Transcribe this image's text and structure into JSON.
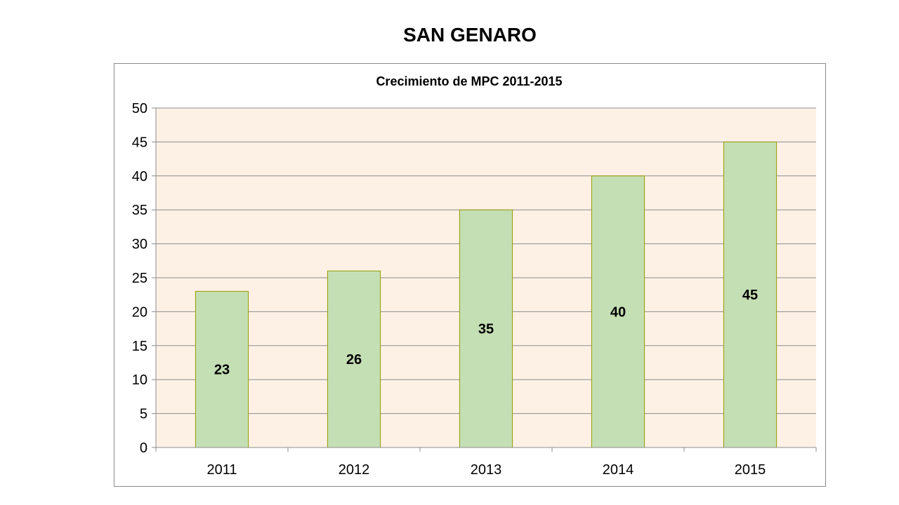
{
  "slide": {
    "title": "SAN GENARO"
  },
  "chart_data": {
    "type": "bar",
    "title": "Crecimiento de MPC 2011-2015",
    "xlabel": "",
    "ylabel": "",
    "categories": [
      "2011",
      "2012",
      "2013",
      "2014",
      "2015"
    ],
    "values": [
      23,
      26,
      35,
      40,
      45
    ],
    "data_labels": [
      "23",
      "26",
      "35",
      "40",
      "45"
    ],
    "ylim": [
      0,
      50
    ],
    "yticks": [
      0,
      5,
      10,
      15,
      20,
      25,
      30,
      35,
      40,
      45,
      50
    ],
    "grid": true,
    "legend": "none",
    "colors": {
      "bar_fill": "#c4dfb3",
      "bar_stroke": "#9a9a00",
      "plot_background": "#fdf1e6",
      "gridline": "#8c8c8c",
      "axis": "#8c8c8c"
    }
  }
}
